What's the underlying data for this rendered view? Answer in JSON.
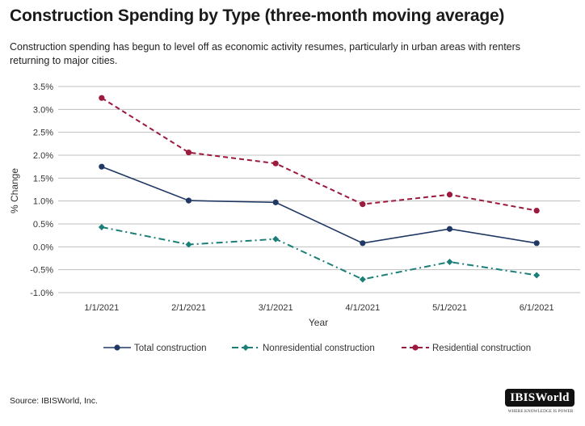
{
  "title": "Construction Spending by Type (three-month moving average)",
  "subtitle": "Construction spending has begun to level off as economic activity resumes, particularly in urban areas with renters returning to major cities.",
  "source": "Source: IBISWorld, Inc.",
  "logo": {
    "name": "IBISWorld",
    "tagline": "Where knowledge is power"
  },
  "chart_data": {
    "type": "line",
    "categories": [
      "1/1/2021",
      "2/1/2021",
      "3/1/2021",
      "4/1/2021",
      "5/1/2021",
      "6/1/2021"
    ],
    "series": [
      {
        "name": "Total construction",
        "values": [
          1.75,
          1.01,
          0.97,
          0.08,
          0.39,
          0.08
        ],
        "color": "#1f3864",
        "dash": "solid",
        "marker": "circle"
      },
      {
        "name": "Nonresidential construction",
        "values": [
          0.43,
          0.05,
          0.17,
          -0.71,
          -0.33,
          -0.62
        ],
        "color": "#1a7f78",
        "dash": "dashdot",
        "marker": "diamond"
      },
      {
        "name": "Residential construction",
        "values": [
          3.25,
          2.06,
          1.82,
          0.93,
          1.14,
          0.79
        ],
        "color": "#9b1a3d",
        "dash": "dash",
        "marker": "circle"
      }
    ],
    "xlabel": "Year",
    "ylabel": "% Change",
    "ylim": [
      -1.0,
      3.5
    ],
    "yticks": [
      "3.5%",
      "3.0%",
      "2.5%",
      "2.0%",
      "1.5%",
      "1.0%",
      "0.5%",
      "0.0%",
      "-0.5%",
      "-1.0%"
    ],
    "ytick_values": [
      3.5,
      3.0,
      2.5,
      2.0,
      1.5,
      1.0,
      0.5,
      0.0,
      -0.5,
      -1.0
    ],
    "grid": true,
    "legend_position": "bottom"
  }
}
